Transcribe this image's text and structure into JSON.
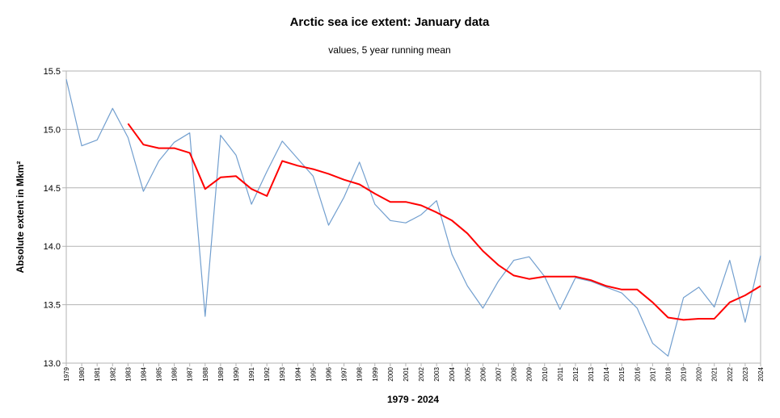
{
  "chart_data": {
    "type": "line",
    "title": "Arctic sea ice extent: January data",
    "subtitle": "values, 5 year running mean",
    "xlabel": "1979 - 2024",
    "ylabel": "Absolute extent in Mkm²",
    "ylim": [
      13.0,
      15.5
    ],
    "yticks": [
      "13.0",
      "13.5",
      "14.0",
      "14.5",
      "15.0",
      "15.5"
    ],
    "grid": true,
    "legend": "none",
    "x": [
      1979,
      1980,
      1981,
      1982,
      1983,
      1984,
      1985,
      1986,
      1987,
      1988,
      1989,
      1990,
      1991,
      1992,
      1993,
      1994,
      1995,
      1996,
      1997,
      1998,
      1999,
      2000,
      2001,
      2002,
      2003,
      2004,
      2005,
      2006,
      2007,
      2008,
      2009,
      2010,
      2011,
      2012,
      2013,
      2014,
      2015,
      2016,
      2017,
      2018,
      2019,
      2020,
      2021,
      2022,
      2023,
      2024
    ],
    "series": [
      {
        "color": "#729fcf",
        "values": [
          15.43,
          14.86,
          14.91,
          15.18,
          14.93,
          14.47,
          14.73,
          14.89,
          14.97,
          13.4,
          14.95,
          14.78,
          14.36,
          14.64,
          14.9,
          14.75,
          14.6,
          14.18,
          14.42,
          14.72,
          14.36,
          14.22,
          14.2,
          14.27,
          14.39,
          13.93,
          13.66,
          13.47,
          13.7,
          13.88,
          13.91,
          13.74,
          13.46,
          13.73,
          13.7,
          13.65,
          13.6,
          13.47,
          13.17,
          13.06,
          13.56,
          13.65,
          13.48,
          13.88,
          13.35,
          13.92
        ]
      },
      {
        "color": "#ff0000",
        "values": [
          null,
          null,
          null,
          null,
          15.05,
          14.87,
          14.84,
          14.84,
          14.8,
          14.49,
          14.59,
          14.6,
          14.49,
          14.43,
          14.73,
          14.69,
          14.66,
          14.62,
          14.57,
          14.53,
          14.45,
          14.38,
          14.38,
          14.35,
          14.29,
          14.22,
          14.11,
          13.96,
          13.84,
          13.75,
          13.72,
          13.74,
          13.74,
          13.74,
          13.71,
          13.66,
          13.63,
          13.63,
          13.52,
          13.39,
          13.37,
          13.38,
          13.38,
          13.52,
          13.58,
          13.66
        ]
      }
    ]
  }
}
